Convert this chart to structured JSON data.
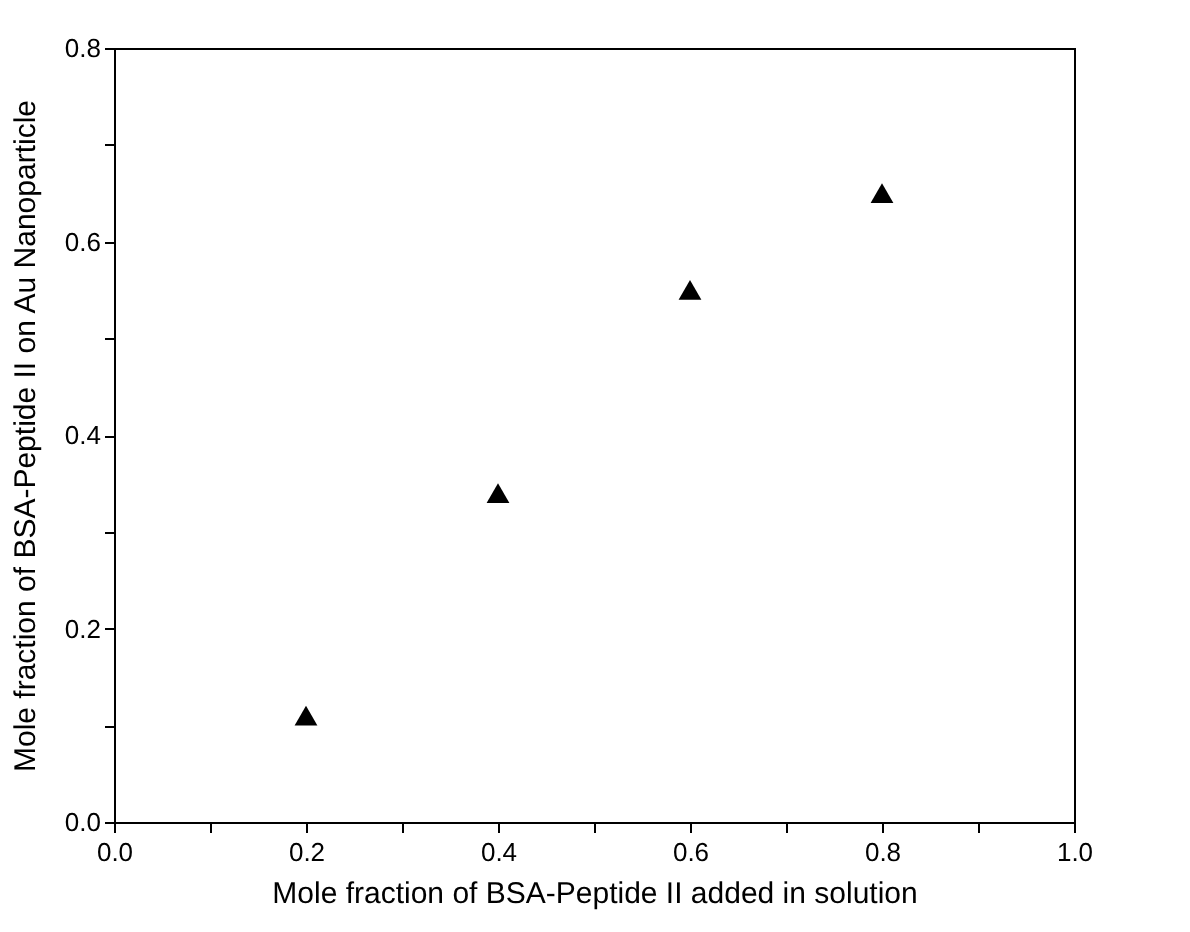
{
  "chart_data": {
    "type": "scatter",
    "xlabel": "Mole fraction of BSA-Peptide II added in solution",
    "ylabel": "Mole fraction of BSA-Peptide II on Au Nanoparticle",
    "x": [
      0.2,
      0.4,
      0.6,
      0.8
    ],
    "series": [
      {
        "color": "#000000",
        "values": [
          0.11,
          0.34,
          0.55,
          0.65
        ]
      }
    ],
    "marker": "triangle",
    "xlim": [
      0,
      1
    ],
    "xticks": [
      {
        "value": 0,
        "label": "0.0"
      },
      {
        "value": 0.1,
        "label": null
      },
      0.2,
      {
        "value": 0.3,
        "label": null
      },
      0.4,
      {
        "value": 0.5,
        "label": null
      },
      0.6,
      {
        "value": 0.7,
        "label": null
      },
      0.8,
      {
        "value": 0.9,
        "label": null
      },
      {
        "value": 1,
        "label": "1.0"
      }
    ],
    "ylim": [
      0,
      0.8
    ],
    "yticks": [
      {
        "value": 0,
        "label": "0.0"
      },
      {
        "value": 0.1,
        "label": null
      },
      0.2,
      {
        "value": 0.3,
        "label": null
      },
      0.4,
      {
        "value": 0.5,
        "label": null
      },
      0.6,
      {
        "value": 0.7,
        "label": null
      },
      0.8
    ],
    "grid": false
  }
}
